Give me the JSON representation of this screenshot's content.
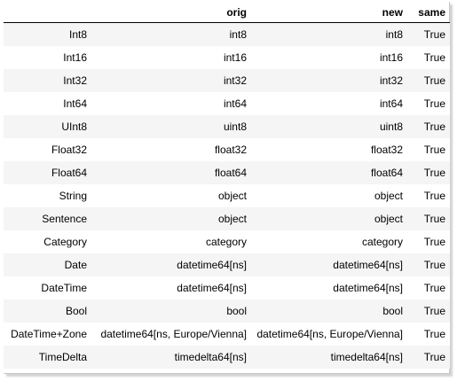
{
  "columns": [
    "",
    "orig",
    "new",
    "same"
  ],
  "rows": [
    {
      "index": "Int8",
      "orig": "int8",
      "new": "int8",
      "same": "True"
    },
    {
      "index": "Int16",
      "orig": "int16",
      "new": "int16",
      "same": "True"
    },
    {
      "index": "Int32",
      "orig": "int32",
      "new": "int32",
      "same": "True"
    },
    {
      "index": "Int64",
      "orig": "int64",
      "new": "int64",
      "same": "True"
    },
    {
      "index": "UInt8",
      "orig": "uint8",
      "new": "uint8",
      "same": "True"
    },
    {
      "index": "Float32",
      "orig": "float32",
      "new": "float32",
      "same": "True"
    },
    {
      "index": "Float64",
      "orig": "float64",
      "new": "float64",
      "same": "True"
    },
    {
      "index": "String",
      "orig": "object",
      "new": "object",
      "same": "True"
    },
    {
      "index": "Sentence",
      "orig": "object",
      "new": "object",
      "same": "True"
    },
    {
      "index": "Category",
      "orig": "category",
      "new": "category",
      "same": "True"
    },
    {
      "index": "Date",
      "orig": "datetime64[ns]",
      "new": "datetime64[ns]",
      "same": "True"
    },
    {
      "index": "DateTime",
      "orig": "datetime64[ns]",
      "new": "datetime64[ns]",
      "same": "True"
    },
    {
      "index": "Bool",
      "orig": "bool",
      "new": "bool",
      "same": "True"
    },
    {
      "index": "DateTime+Zone",
      "orig": "datetime64[ns, Europe/Vienna]",
      "new": "datetime64[ns, Europe/Vienna]",
      "same": "True"
    },
    {
      "index": "TimeDelta",
      "orig": "timedelta64[ns]",
      "new": "timedelta64[ns]",
      "same": "True"
    }
  ]
}
